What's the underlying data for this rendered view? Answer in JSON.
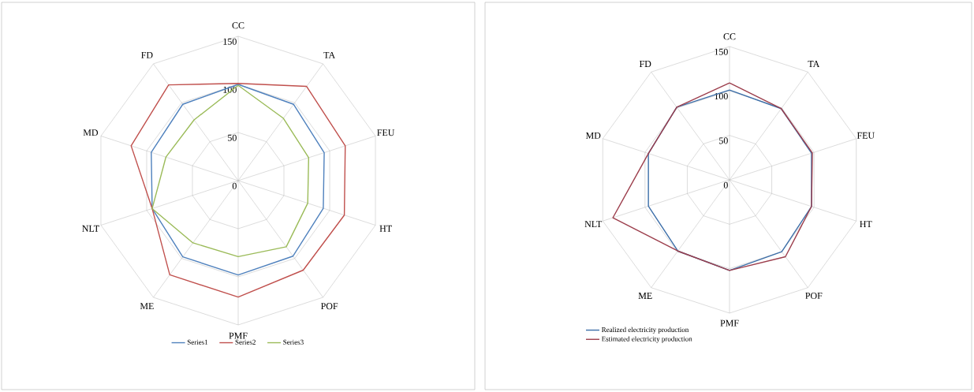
{
  "chart_data": [
    {
      "type": "radar",
      "categories": [
        "CC",
        "TA",
        "FEU",
        "HT",
        "POF",
        "PMF",
        "ME",
        "NLT",
        "MD",
        "FD"
      ],
      "ylim": [
        0,
        150
      ],
      "yticks": [
        0,
        50,
        100,
        150
      ],
      "grid": true,
      "legend": "bottom",
      "series": [
        {
          "name": "Series1",
          "color": "#4f81bd",
          "values": [
            100,
            98,
            94,
            93,
            97,
            98,
            98,
            94,
            95,
            98
          ]
        },
        {
          "name": "Series2",
          "color": "#c0504d",
          "values": [
            101,
            121,
            117,
            116,
            115,
            121,
            121,
            94,
            117,
            123
          ]
        },
        {
          "name": "Series3",
          "color": "#9bbb59",
          "values": [
            99,
            80,
            77,
            76,
            85,
            79,
            80,
            94,
            79,
            78
          ]
        }
      ]
    },
    {
      "type": "radar",
      "categories": [
        "CC",
        "TA",
        "FEU",
        "HT",
        "POF",
        "PMF",
        "ME",
        "NLT",
        "MD",
        "FD"
      ],
      "ylim": [
        0,
        150
      ],
      "yticks": [
        0,
        50,
        100,
        150
      ],
      "grid": true,
      "legend": "bottom",
      "series": [
        {
          "name": "Realized electricity production",
          "color": "#3c6ea8",
          "values": [
            101,
            99,
            97,
            97,
            100,
            102,
            99,
            96,
            96,
            101
          ]
        },
        {
          "name": "Estimated electricity production",
          "color": "#9c3e4c",
          "values": [
            109,
            99,
            98,
            97,
            107,
            102,
            99,
            138,
            96,
            101
          ]
        }
      ]
    }
  ]
}
